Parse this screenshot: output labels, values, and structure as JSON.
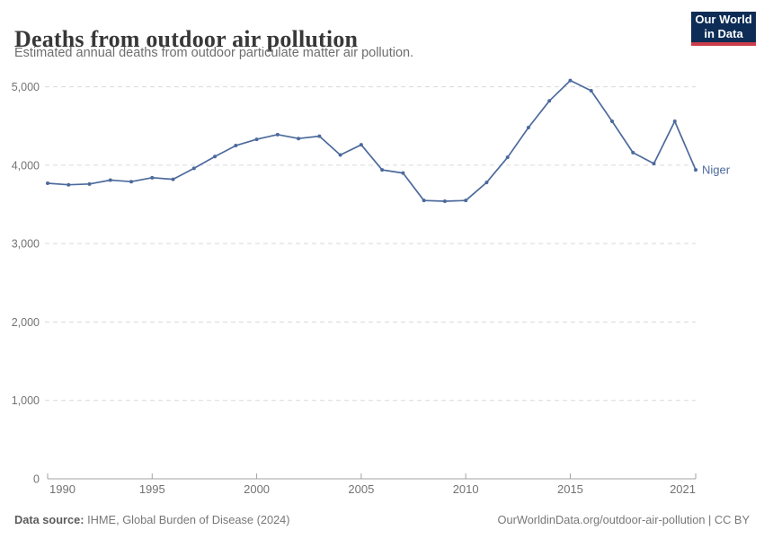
{
  "header": {
    "title": "Deaths from outdoor air pollution",
    "subtitle": "Estimated annual deaths from outdoor particulate matter air pollution."
  },
  "logo": {
    "line1": "Our World",
    "line2": "in Data",
    "bg_color": "#0d2c56",
    "accent_color": "#cb3c49"
  },
  "chart_data": {
    "type": "line",
    "title": "Deaths from outdoor air pollution",
    "subtitle": "Estimated annual deaths from outdoor particulate matter air pollution.",
    "x": [
      1990,
      1991,
      1992,
      1993,
      1994,
      1995,
      1996,
      1997,
      1998,
      1999,
      2000,
      2001,
      2002,
      2003,
      2004,
      2005,
      2006,
      2007,
      2008,
      2009,
      2010,
      2011,
      2012,
      2013,
      2014,
      2015,
      2016,
      2017,
      2018,
      2019,
      2020,
      2021
    ],
    "series": [
      {
        "name": "Niger",
        "color": "#4c6a9c",
        "values": [
          3770,
          3750,
          3760,
          3810,
          3790,
          3840,
          3820,
          3960,
          4110,
          4250,
          4330,
          4390,
          4340,
          4370,
          4130,
          4260,
          3940,
          3900,
          3550,
          3540,
          3550,
          3780,
          4100,
          4480,
          4820,
          5080,
          4950,
          4560,
          4160,
          4020,
          4560,
          3940
        ]
      }
    ],
    "ylim": [
      0,
      5000
    ],
    "yticks": [
      0,
      1000,
      2000,
      3000,
      4000,
      5000
    ],
    "xticks": [
      1990,
      1995,
      2000,
      2005,
      2010,
      2015,
      2021
    ],
    "grid": "horizontal-dashed",
    "legend_position": "end-of-line-label",
    "axis_color": "#a3a3a3",
    "grid_color": "#dadada",
    "tick_label_color": "#737373"
  },
  "footer": {
    "datasource_label": "Data source:",
    "datasource_text": " IHME, Global Burden of Disease (2024)",
    "credit": "OurWorldinData.org/outdoor-air-pollution | CC BY"
  }
}
